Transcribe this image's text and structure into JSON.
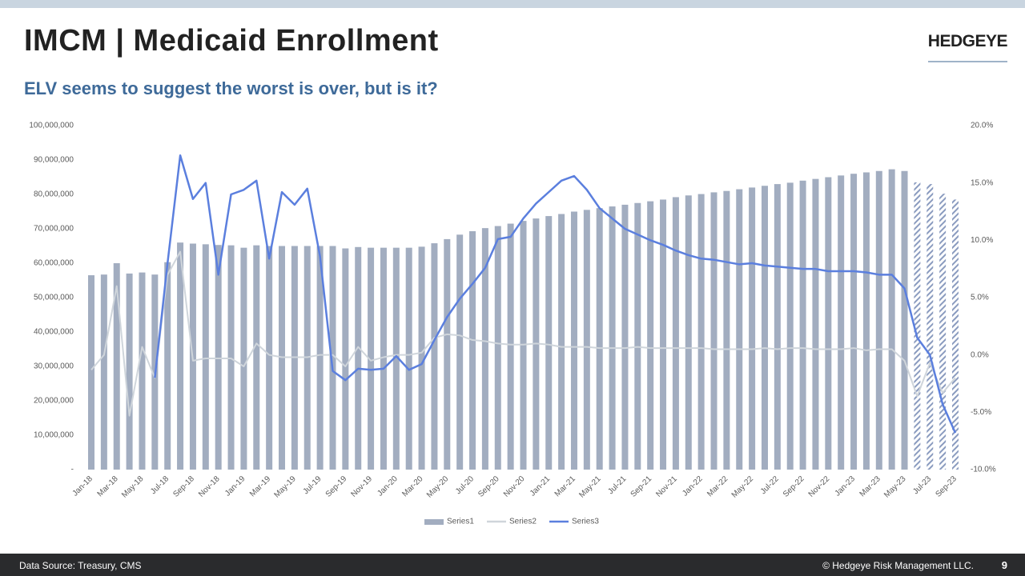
{
  "slide": {
    "title": "IMCM | Medicaid Enrollment",
    "subtitle": "ELV seems to suggest the worst is over, but is it?",
    "logo": "HEDGEYE",
    "source": "Data Source: Treasury, CMS",
    "copyright": "© Hedgeye Risk Management LLC.",
    "page": "9"
  },
  "chart_data": {
    "type": "bar",
    "categories": [
      "Jan-18",
      null,
      "Mar-18",
      null,
      "May-18",
      null,
      "Jul-18",
      null,
      "Sep-18",
      null,
      "Nov-18",
      null,
      "Jan-19",
      null,
      "Mar-19",
      null,
      "May-19",
      null,
      "Jul-19",
      null,
      "Sep-19",
      null,
      "Nov-19",
      null,
      "Jan-20",
      null,
      "Mar-20",
      null,
      "May-20",
      null,
      "Jul-20",
      null,
      "Sep-20",
      null,
      "Nov-20",
      null,
      "Jan-21",
      null,
      "Mar-21",
      null,
      "May-21",
      null,
      "Jul-21",
      null,
      "Sep-21",
      null,
      "Nov-21",
      null,
      "Jan-22",
      null,
      "Mar-22",
      null,
      "May-22",
      null,
      "Jul-22",
      null,
      "Sep-22",
      null,
      "Nov-22",
      null,
      "Jan-23",
      null,
      "Mar-23",
      null,
      "May-23",
      null,
      "Jul-23",
      null,
      "Sep-23"
    ],
    "series": [
      {
        "name": "Series1",
        "type": "bar",
        "color": "#a2adc0",
        "hatch_color": "#8a9bbf",
        "hatched_last": 4,
        "values": [
          56500000,
          56700000,
          60000000,
          57000000,
          57300000,
          56700000,
          60300000,
          66000000,
          65700000,
          65500000,
          65300000,
          65200000,
          64500000,
          65200000,
          65000000,
          65000000,
          65000000,
          65000000,
          65000000,
          65000000,
          64300000,
          64700000,
          64500000,
          64500000,
          64500000,
          64500000,
          64800000,
          65800000,
          67000000,
          68300000,
          69300000,
          70200000,
          70800000,
          71500000,
          72300000,
          73000000,
          73700000,
          74300000,
          75000000,
          75500000,
          76000000,
          76500000,
          77000000,
          77500000,
          78000000,
          78500000,
          79200000,
          79700000,
          80100000,
          80600000,
          81000000,
          81500000,
          82000000,
          82500000,
          83000000,
          83400000,
          84000000,
          84500000,
          85000000,
          85500000,
          86000000,
          86400000,
          86800000,
          87300000,
          86800000,
          83500000,
          83000000,
          80200000,
          78500000
        ]
      },
      {
        "name": "Series2",
        "type": "line",
        "axis": "y2",
        "color": "#cfd5db",
        "values": [
          -1.3,
          0,
          6,
          -5.3,
          0.7,
          -2,
          7,
          9,
          -0.5,
          -0.3,
          -0.3,
          -0.3,
          -1,
          1,
          0,
          -0.2,
          -0.2,
          -0.2,
          0,
          0,
          -1,
          0.7,
          -0.5,
          -0.2,
          0,
          0,
          0.2,
          1.5,
          1.8,
          1.7,
          1.3,
          1.2,
          1,
          0.9,
          0.9,
          1,
          0.9,
          0.7,
          0.7,
          0.7,
          0.6,
          0.6,
          0.6,
          0.7,
          0.6,
          0.6,
          0.6,
          0.6,
          0.6,
          0.5,
          0.5,
          0.5,
          0.5,
          0.6,
          0.5,
          0.6,
          0.6,
          0.5,
          0.5,
          0.5,
          0.6,
          0.4,
          0.5,
          0.5,
          -0.5,
          -3.6,
          -0.7,
          -3.3,
          -2
        ]
      },
      {
        "name": "Series3",
        "type": "line",
        "axis": "y2",
        "color": "#5b7fde",
        "values": [
          null,
          null,
          null,
          null,
          null,
          -2,
          8,
          17.4,
          13.6,
          15,
          7,
          14,
          14.4,
          15.2,
          8.4,
          14.2,
          13.1,
          14.5,
          8.6,
          -1.4,
          -2.2,
          -1.2,
          -1.3,
          -1.2,
          -0.1,
          -1.3,
          -0.8,
          1.3,
          3.3,
          4.9,
          6.2,
          7.6,
          10.1,
          10.3,
          11.9,
          13.2,
          14.2,
          15.2,
          15.6,
          14.4,
          12.8,
          11.9,
          11,
          10.5,
          10,
          9.6,
          9.1,
          8.7,
          8.4,
          8.3,
          8.1,
          7.9,
          8,
          7.8,
          7.7,
          7.6,
          7.5,
          7.5,
          7.3,
          7.3,
          7.3,
          7.2,
          7,
          7,
          5.8,
          1.5,
          0,
          -4.3,
          -6.8
        ]
      }
    ],
    "ylim": [
      0,
      100000000
    ],
    "yticks": [
      {
        "value": 0,
        "label": "-"
      },
      {
        "value": 10000000,
        "label": "10,000,000"
      },
      {
        "value": 20000000,
        "label": "20,000,000"
      },
      {
        "value": 30000000,
        "label": "30,000,000"
      },
      {
        "value": 40000000,
        "label": "40,000,000"
      },
      {
        "value": 50000000,
        "label": "50,000,000"
      },
      {
        "value": 60000000,
        "label": "60,000,000"
      },
      {
        "value": 70000000,
        "label": "70,000,000"
      },
      {
        "value": 80000000,
        "label": "80,000,000"
      },
      {
        "value": 90000000,
        "label": "90,000,000"
      },
      {
        "value": 100000000,
        "label": "100,000,000"
      }
    ],
    "y2lim": [
      -10,
      20
    ],
    "y2ticks": [
      {
        "value": -10,
        "label": "-10.0%"
      },
      {
        "value": -5,
        "label": "-5.0%"
      },
      {
        "value": 0,
        "label": "0.0%"
      },
      {
        "value": 5,
        "label": "5.0%"
      },
      {
        "value": 10,
        "label": "10.0%"
      },
      {
        "value": 15,
        "label": "15.0%"
      },
      {
        "value": 20,
        "label": "20.0%"
      }
    ],
    "grid": false,
    "legend": "bottom"
  }
}
